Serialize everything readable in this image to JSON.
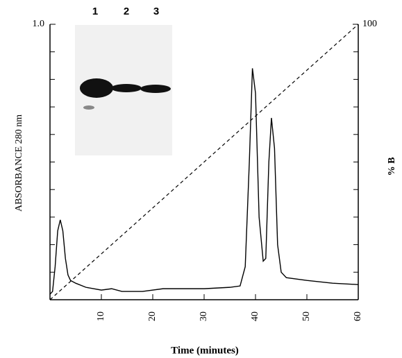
{
  "chart_data": {
    "type": "line",
    "xlabel": "Time (minutes)",
    "ylabel": "ABSORBANCE 280 nm",
    "y2label": "% B",
    "inset_labels": [
      "1",
      "2",
      "3"
    ],
    "xlim": [
      0,
      60
    ],
    "xticks": [
      10,
      20,
      30,
      40,
      50,
      60
    ],
    "ylim": [
      0,
      1
    ],
    "yticks": [
      {
        "value": 1,
        "label": "1.0"
      }
    ],
    "yminorticks": [
      0.1,
      0.2,
      0.3,
      0.4,
      0.5,
      0.6,
      0.7,
      0.8,
      0.9
    ],
    "y2lim": [
      0,
      100
    ],
    "y2ticks": [
      100
    ],
    "y2minorticks": [
      10,
      20,
      30,
      40,
      50,
      60,
      70,
      80,
      90
    ],
    "series": [
      {
        "color": "#000000",
        "dashed": false,
        "x": [
          0,
          0.5,
          1,
          1.5,
          2,
          2.5,
          3,
          3.5,
          4,
          5,
          7,
          10,
          12,
          14,
          18,
          22,
          26,
          30,
          35,
          37,
          38,
          38.8,
          39.4,
          40,
          40.7,
          41.5,
          42,
          42.6,
          43.1,
          43.7,
          44.3,
          45,
          46,
          50,
          55,
          60
        ],
        "values": [
          0.02,
          0.03,
          0.12,
          0.25,
          0.29,
          0.25,
          0.15,
          0.09,
          0.07,
          0.06,
          0.045,
          0.035,
          0.04,
          0.03,
          0.03,
          0.04,
          0.04,
          0.04,
          0.045,
          0.05,
          0.12,
          0.5,
          0.84,
          0.75,
          0.3,
          0.14,
          0.15,
          0.5,
          0.66,
          0.55,
          0.2,
          0.1,
          0.08,
          0.07,
          0.06,
          0.055
        ]
      },
      {
        "color": "#000000",
        "dashed": true,
        "axis": "y2",
        "x": [
          0,
          60
        ],
        "values": [
          0,
          100
        ]
      }
    ]
  }
}
